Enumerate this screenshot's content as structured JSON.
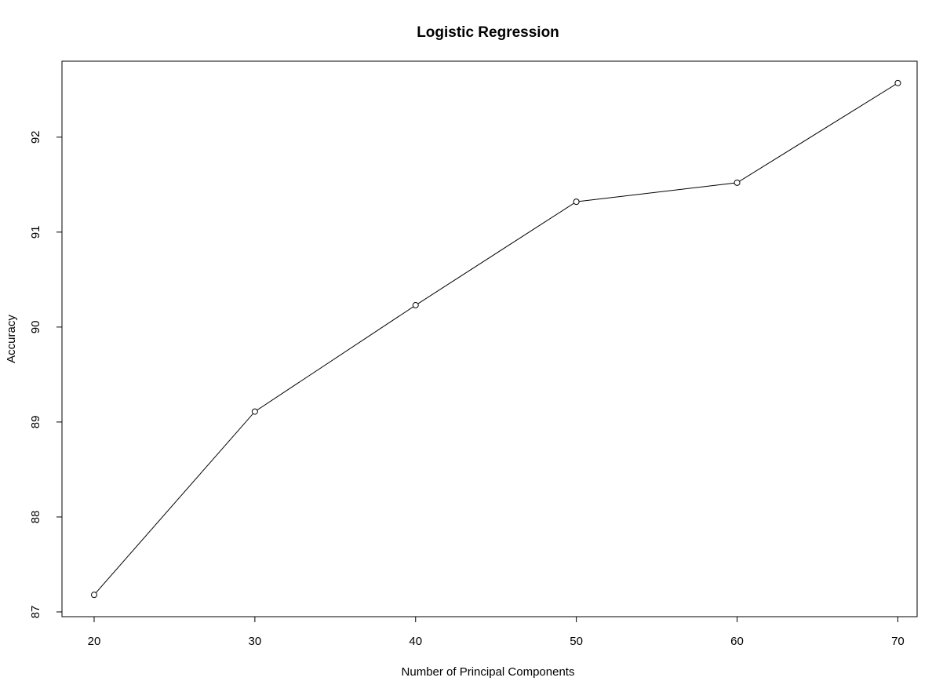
{
  "chart_data": {
    "type": "line",
    "title": "Logistic Regression",
    "xlabel": "Number of Principal Components",
    "ylabel": "Accuracy",
    "x": [
      20,
      30,
      40,
      50,
      60,
      70
    ],
    "series": [
      {
        "values": [
          87.18,
          89.11,
          90.23,
          91.32,
          91.52,
          92.57
        ]
      }
    ],
    "xticks": [
      20,
      30,
      40,
      50,
      60,
      70
    ],
    "yticks": [
      87,
      88,
      89,
      90,
      91,
      92
    ],
    "xlim": [
      18,
      71.2
    ],
    "ylim": [
      86.95,
      92.8
    ],
    "grid": false,
    "legend": "none",
    "marker": "open-circle",
    "line_color": "#000000"
  }
}
